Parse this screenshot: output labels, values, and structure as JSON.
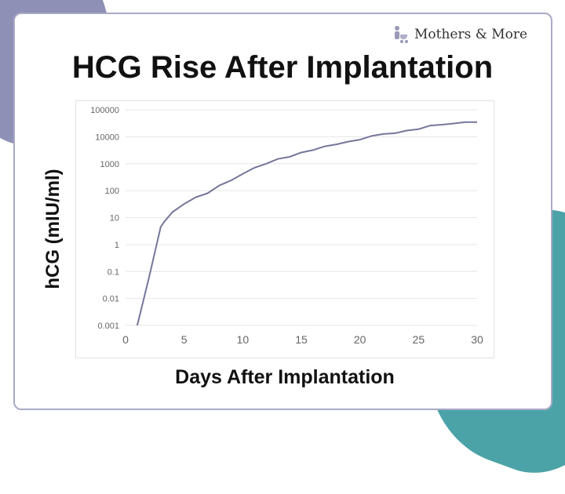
{
  "brand": {
    "name": "Mothers & More",
    "icon": "stroller-icon"
  },
  "colors": {
    "accent_purple": "#8e90b6",
    "accent_teal": "#4ba3a8",
    "line": "#76769a"
  },
  "chart_data": {
    "type": "line",
    "title": "HCG Rise After Implantation",
    "xlabel": "Days After Implantation",
    "ylabel": "hCG (mIU/ml)",
    "xlim": [
      0,
      30
    ],
    "ylim": [
      0.001,
      100000
    ],
    "yscale": "log",
    "grid": true,
    "x_ticks": [
      "0",
      "5",
      "10",
      "15",
      "20",
      "25",
      "30"
    ],
    "y_ticks": [
      "100000",
      "10000",
      "1000",
      "100",
      "10",
      "1",
      "0.1",
      "0.01",
      "0.001"
    ],
    "x": [
      1,
      2,
      3,
      3.3,
      4,
      5,
      6,
      7,
      8,
      9,
      10,
      11,
      12,
      13,
      14,
      15,
      16,
      17,
      18,
      19,
      20,
      21,
      22,
      23,
      24,
      25,
      26,
      27,
      28,
      29,
      30
    ],
    "y": [
      0.001,
      0.06,
      4.5,
      7,
      16,
      32,
      57,
      80,
      155,
      240,
      420,
      710,
      1000,
      1500,
      1800,
      2600,
      3200,
      4400,
      5200,
      6600,
      7800,
      10700,
      12600,
      13500,
      17000,
      19000,
      26000,
      28000,
      31000,
      35000,
      35000
    ]
  }
}
